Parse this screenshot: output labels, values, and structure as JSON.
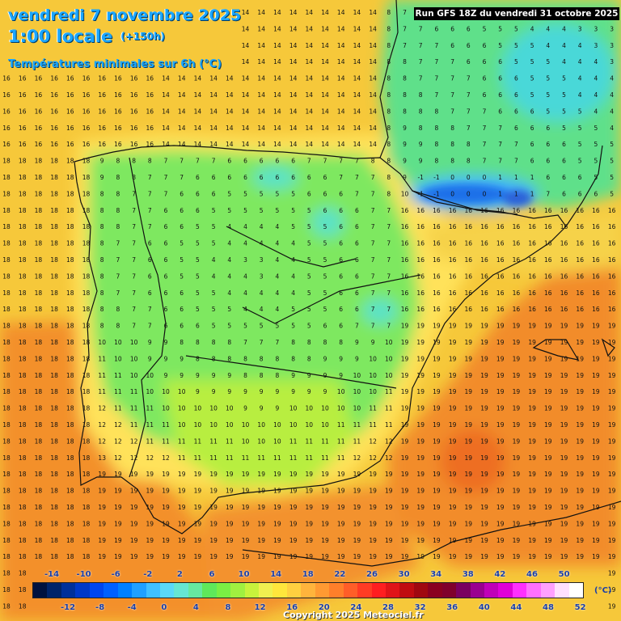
{
  "header": {
    "date_line": "vendredi 7 novembre 2025",
    "time_line": "1:00 locale",
    "lead_time": "(+150h)",
    "field_title": "Températures minimales sur 6h (°C)",
    "run_info": "Run GFS 18Z du vendredi 31 octobre 2025"
  },
  "legend": {
    "upper_labels": [
      "-14",
      "-10",
      "-6",
      "-2",
      "2",
      "6",
      "10",
      "14",
      "18",
      "22",
      "26",
      "30",
      "34",
      "38",
      "42",
      "46",
      "50"
    ],
    "lower_labels": [
      "-12",
      "-8",
      "-4",
      "0",
      "4",
      "8",
      "12",
      "16",
      "20",
      "24",
      "28",
      "32",
      "36",
      "40",
      "44",
      "48",
      "52"
    ],
    "unit": "(°C)",
    "colors": [
      "#00123f",
      "#00246a",
      "#00309a",
      "#0038c8",
      "#0046f0",
      "#0060ff",
      "#0080ff",
      "#20a0ff",
      "#40c0ff",
      "#5ad8f8",
      "#66e6d2",
      "#66e8a0",
      "#5fe85a",
      "#7aee44",
      "#a0f040",
      "#c8f23c",
      "#f0f050",
      "#ffe63c",
      "#ffd040",
      "#ffb43c",
      "#ff9a32",
      "#ff7f2a",
      "#ff5e28",
      "#ff3c24",
      "#ff1e20",
      "#e01418",
      "#c00c10",
      "#a00810",
      "#8a0020",
      "#80002c",
      "#7a0060",
      "#9a0090",
      "#c000b8",
      "#e000d8",
      "#ff30ff",
      "#ff70ff",
      "#ffa0ff",
      "#ffe0ff",
      "#ffffff"
    ]
  },
  "footer": {
    "copyright": "Copyright 2025 Meteociel.fr"
  },
  "map_layers": {
    "values_grid": "temperature-values-overlay",
    "coastline": "coastline-borders"
  }
}
